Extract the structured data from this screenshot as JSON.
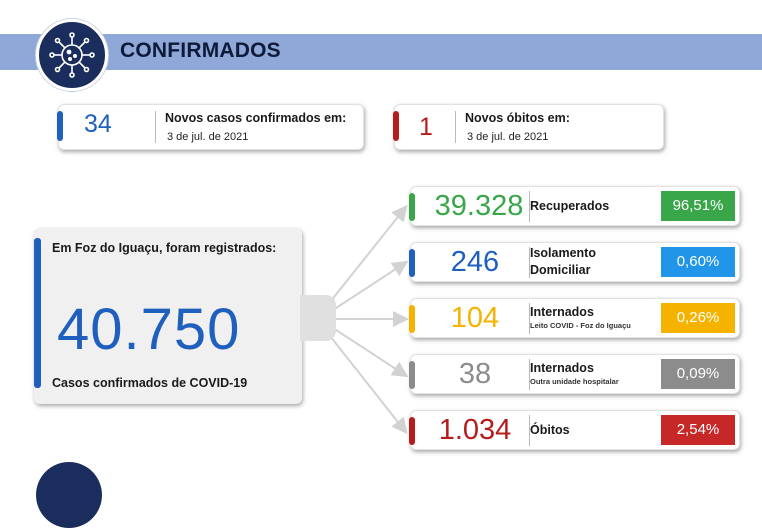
{
  "header": {
    "title": "CONFIRMADOS",
    "icon": "virus-icon",
    "banner_color": "#8fa8d8",
    "badge_color": "#1b2d5c"
  },
  "new_cases": {
    "value": "34",
    "label": "Novos casos confirmados em:",
    "date": "3 de jul. de 2021",
    "color": "#1f5fbd"
  },
  "new_deaths": {
    "value": "1",
    "label": "Novos óbitos em:",
    "date": "3 de jul. de 2021",
    "color": "#b71c1c"
  },
  "summary": {
    "heading": "Em Foz do Iguaçu, foram registrados:",
    "total": "40.750",
    "caption": "Casos confirmados de COVID-19",
    "color": "#1f5fbd"
  },
  "stats": [
    {
      "value": "39.328",
      "label": "Recuperados",
      "sublabel": "",
      "percent": "96,51%",
      "color": "#3aa64a",
      "pct_color": "#3aa64a"
    },
    {
      "value": "246",
      "label": "Isolamento Domiciliar",
      "label_line1": "Isolamento",
      "label_line2": "Domiciliar",
      "sublabel": "",
      "percent": "0,60%",
      "color": "#1f5fbd",
      "pct_color": "#2196e8"
    },
    {
      "value": "104",
      "label": "Internados",
      "sublabel": "Leito COVID - Foz do Iguaçu",
      "percent": "0,26%",
      "color": "#f5b300",
      "pct_color": "#f5b300"
    },
    {
      "value": "38",
      "label": "Internados",
      "sublabel": "Outra unidade hospitalar",
      "percent": "0,09%",
      "color": "#8c8c8c",
      "pct_color": "#8c8c8c"
    },
    {
      "value": "1.034",
      "label": "Óbitos",
      "sublabel": "",
      "percent": "2,54%",
      "color": "#b71c1c",
      "pct_color": "#c62828"
    }
  ]
}
